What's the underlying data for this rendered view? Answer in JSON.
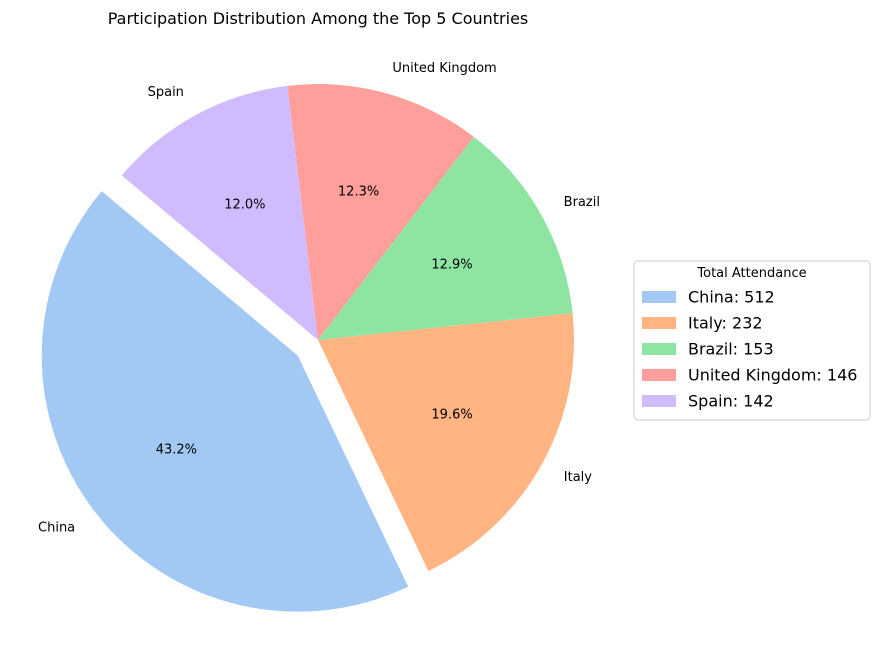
{
  "chart_data": {
    "type": "pie",
    "title": "Participation Distribution Among the Top 5 Countries",
    "categories": [
      "China",
      "Italy",
      "Brazil",
      "United Kingdom",
      "Spain"
    ],
    "values": [
      512,
      232,
      153,
      146,
      142
    ],
    "percent_labels": [
      "43.2%",
      "19.6%",
      "12.9%",
      "12.3%",
      "12.0%"
    ],
    "colors": [
      "#a1c9f4",
      "#ffb482",
      "#8de5a1",
      "#ff9f9b",
      "#d0bbff"
    ],
    "explode": [
      0.1,
      0,
      0,
      0,
      0
    ],
    "start_angle_deg": 140,
    "direction": "counterclockwise",
    "legend": {
      "title": "Total Attendance",
      "entries": [
        "China: 512",
        "Italy: 232",
        "Brazil: 153",
        "United Kingdom: 146",
        "Spain: 142"
      ],
      "placement": "center-right"
    }
  }
}
